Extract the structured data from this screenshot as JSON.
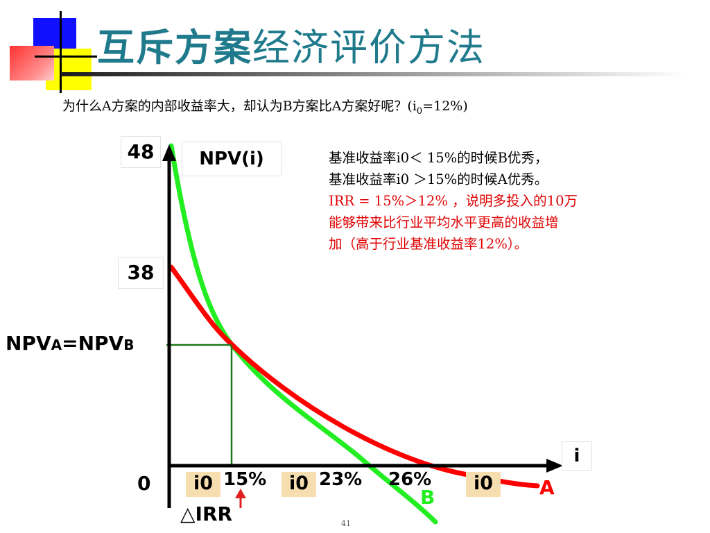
{
  "title": {
    "part1": "互斥方案",
    "part2": "经济评价方法"
  },
  "question": "为什么A方案的内部收益率大，却认为B方案比A方案好呢？(i",
  "question_sub": "0",
  "question_end": "=12%)",
  "explanation": {
    "line1": "基准收益率i0＜ 15%的时候B优秀，",
    "line2": "基准收益率i0 ＞15%的时候A优秀。",
    "line3": "IRR = 15%＞12% ，说明多投入的10万",
    "line4": "能够带来比行业平均水平更高的收益增",
    "line5": "加（高于行业基准收益率12%）。"
  },
  "labels": {
    "y_top": "48",
    "y_mid": "38",
    "y_zero": "0",
    "npv_axis": "NPV(i)",
    "x_axis": "i",
    "npv_eq_1": "NPV",
    "npv_eq_a": "A",
    "npv_eq_2": "=NPV",
    "npv_eq_b": "B",
    "x_15": "15%",
    "x_23": "23%",
    "x_26": "26%",
    "i0": "i0",
    "delta_irr": "△IRR",
    "curve_a": "A",
    "curve_b": "B"
  },
  "page_number": "41",
  "colors": {
    "curve_a": "#ff0000",
    "curve_b": "#22ee22",
    "guide": "#1a7a1a",
    "arrow": "#e02020",
    "title": "#1f7a8c",
    "explain_red": "#e00000"
  },
  "chart_data": {
    "type": "line",
    "title": "",
    "xlabel": "i",
    "ylabel": "NPV(i)",
    "x_ticks": [
      "15%",
      "23%",
      "26%"
    ],
    "y_ticks": [
      0,
      38,
      48
    ],
    "intersection": {
      "x": 15,
      "label": "NPVA=NPVB"
    },
    "series": [
      {
        "name": "A",
        "y_at_zero": 38,
        "irr": 26
      },
      {
        "name": "B",
        "y_at_zero": 48,
        "irr": 23
      }
    ]
  }
}
